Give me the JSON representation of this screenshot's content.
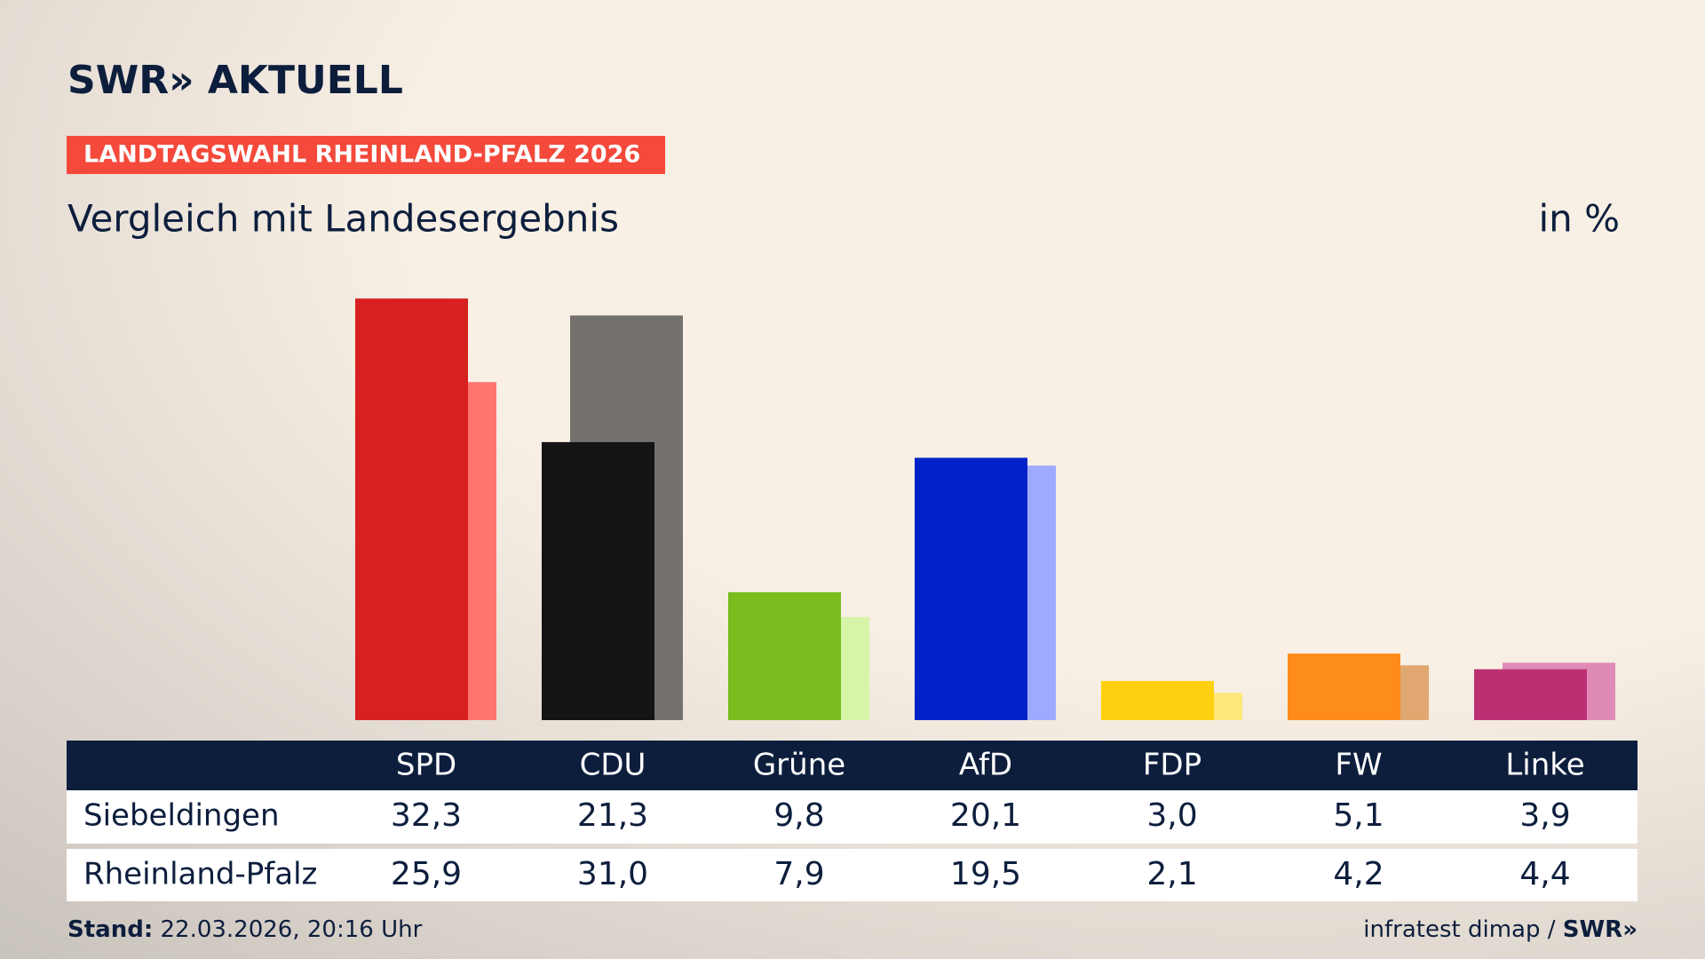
{
  "chart_data": {
    "type": "bar",
    "brand": "SWR» AKTUELL",
    "kicker": "LANDTAGSWAHL RHEINLAND-PFALZ 2026",
    "title": "Vergleich mit Landesergebnis",
    "unit": "in %",
    "categories": [
      "SPD",
      "CDU",
      "Grüne",
      "AfD",
      "FDP",
      "FW",
      "Linke"
    ],
    "series": [
      {
        "name": "Siebeldingen",
        "colors": [
          "#d72020",
          "#141414",
          "#79bd1e",
          "#0022c8",
          "#ffd010",
          "#fd8c1a",
          "#bc3073"
        ],
        "values": [
          32.3,
          21.3,
          9.8,
          20.1,
          3.0,
          5.1,
          3.9
        ],
        "value_labels": [
          "32,3",
          "21,3",
          "9,8",
          "20,1",
          "3,0",
          "5,1",
          "3,9"
        ]
      },
      {
        "name": "Rheinland-Pfalz",
        "colors": [
          "#ff7670",
          "#74716e",
          "#d7f5a9",
          "#9eaaff",
          "#ffe67a",
          "#e0a870",
          "#e08bb6"
        ],
        "values": [
          25.9,
          31.0,
          7.9,
          19.5,
          2.1,
          4.2,
          4.4
        ],
        "value_labels": [
          "25,9",
          "31,0",
          "7,9",
          "19,5",
          "2,1",
          "4,2",
          "4,4"
        ]
      }
    ],
    "footer": {
      "stand_label": "Stand:",
      "stand": "22.03.2026, 20:16 Uhr",
      "source": "infratest dimap /",
      "source_brand": "SWR»"
    }
  }
}
